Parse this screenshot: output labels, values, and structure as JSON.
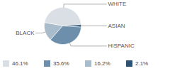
{
  "chart_data": {
    "type": "pie",
    "categories": [
      "WHITE",
      "ASIAN",
      "HISPANIC",
      "BLACK"
    ],
    "values": [
      46.1,
      2.1,
      35.6,
      16.2
    ],
    "value_labels": [
      "46.1%",
      "2.1%",
      "35.6%",
      "16.2%"
    ],
    "colors": [
      "#d9dfe4",
      "#2e5272",
      "#6e8fab",
      "#a9bccb"
    ],
    "legend": "bottom"
  }
}
